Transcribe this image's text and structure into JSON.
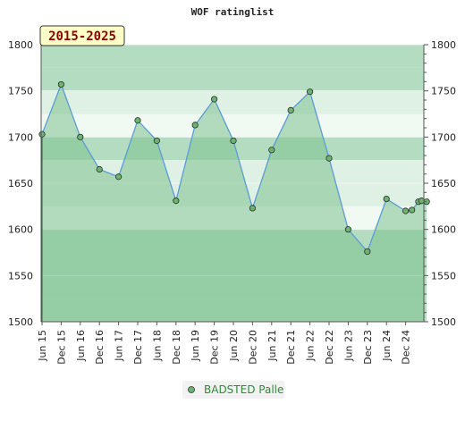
{
  "chart_data": {
    "type": "line",
    "title": "WOF ratinglist",
    "period_label": "2015-2025",
    "ylim": [
      1500,
      1800
    ],
    "y_ticks": [
      1500,
      1550,
      1600,
      1650,
      1700,
      1750,
      1800
    ],
    "x_tick_labels": [
      "Jun 15",
      "Dec 15",
      "Jun 16",
      "Dec 16",
      "Jun 17",
      "Dec 17",
      "Jun 18",
      "Dec 18",
      "Jun 19",
      "Dec 19",
      "Jun 20",
      "Dec 20",
      "Jun 21",
      "Dec 21",
      "Jun 22",
      "Dec 22",
      "Jun 23",
      "Dec 23",
      "Jun 24",
      "Dec 24"
    ],
    "legend_position": "bottom",
    "grid": true,
    "colors": {
      "line": "#5b9bd5",
      "fill": "#7cc28e",
      "marker": "#6bb36f",
      "band_dark": "#b4dcc0",
      "band_light": "#dff0e4",
      "band_lightest": "#f1f9f3"
    },
    "series": [
      {
        "name": "BADSTED Palle",
        "points": [
          {
            "x": 0,
            "y": 1703
          },
          {
            "x": 1,
            "y": 1757
          },
          {
            "x": 2,
            "y": 1700
          },
          {
            "x": 3,
            "y": 1665
          },
          {
            "x": 4,
            "y": 1657
          },
          {
            "x": 5,
            "y": 1718
          },
          {
            "x": 6,
            "y": 1696
          },
          {
            "x": 7,
            "y": 1631
          },
          {
            "x": 8,
            "y": 1713
          },
          {
            "x": 9,
            "y": 1741
          },
          {
            "x": 10,
            "y": 1696
          },
          {
            "x": 11,
            "y": 1623
          },
          {
            "x": 12,
            "y": 1686
          },
          {
            "x": 13,
            "y": 1729
          },
          {
            "x": 14,
            "y": 1749
          },
          {
            "x": 15,
            "y": 1677
          },
          {
            "x": 16,
            "y": 1600
          },
          {
            "x": 17,
            "y": 1576
          },
          {
            "x": 18,
            "y": 1633
          },
          {
            "x": 19,
            "y": 1620
          },
          {
            "x": 19.33,
            "y": 1621
          },
          {
            "x": 19.67,
            "y": 1630
          },
          {
            "x": 19.83,
            "y": 1631
          },
          {
            "x": 20.1,
            "y": 1630
          }
        ]
      }
    ]
  }
}
